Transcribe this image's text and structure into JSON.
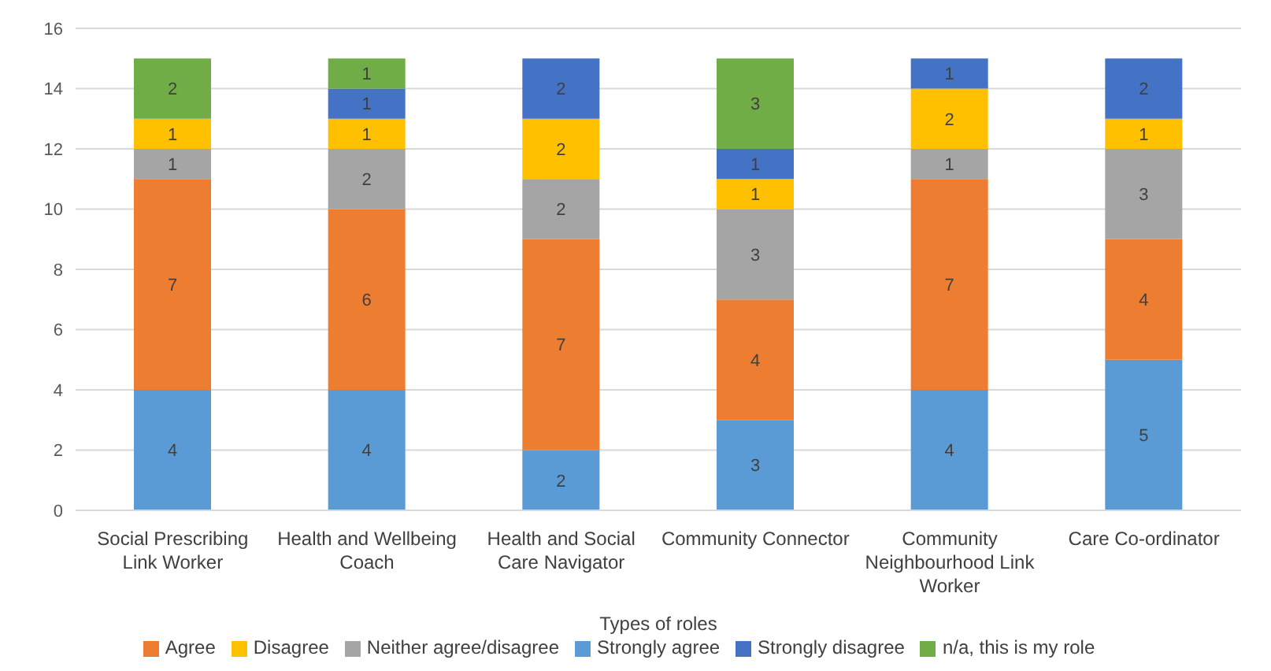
{
  "chart_data": {
    "type": "bar",
    "stacked": true,
    "xlabel": "Types of roles",
    "categories": [
      "Social Prescribing Link Worker",
      "Health and Wellbeing Coach",
      "Health and Social Care Navigator",
      "Community Connector",
      "Community Neighbourhood Link Worker",
      "Care Co-ordinator"
    ],
    "series": [
      {
        "name": "Strongly agree",
        "color": "#5b9bd5",
        "values": [
          4,
          4,
          2,
          3,
          4,
          5
        ]
      },
      {
        "name": "Agree",
        "color": "#ed7d31",
        "values": [
          7,
          6,
          7,
          4,
          7,
          4
        ]
      },
      {
        "name": "Neither agree/disagree",
        "color": "#a5a5a5",
        "values": [
          1,
          2,
          2,
          3,
          1,
          3
        ]
      },
      {
        "name": "Disagree",
        "color": "#ffc000",
        "values": [
          1,
          1,
          2,
          1,
          2,
          1
        ]
      },
      {
        "name": "Strongly disagree",
        "color": "#4472c4",
        "values": [
          null,
          1,
          2,
          1,
          1,
          2
        ]
      },
      {
        "name": "n/a, this is my role",
        "color": "#70ad47",
        "values": [
          2,
          1,
          null,
          3,
          null,
          null
        ]
      }
    ],
    "ylim": [
      0,
      16
    ],
    "yticks": [
      0,
      2,
      4,
      6,
      8,
      10,
      12,
      14,
      16
    ],
    "grid": "y",
    "legend": "bottom",
    "data_labels": true
  }
}
